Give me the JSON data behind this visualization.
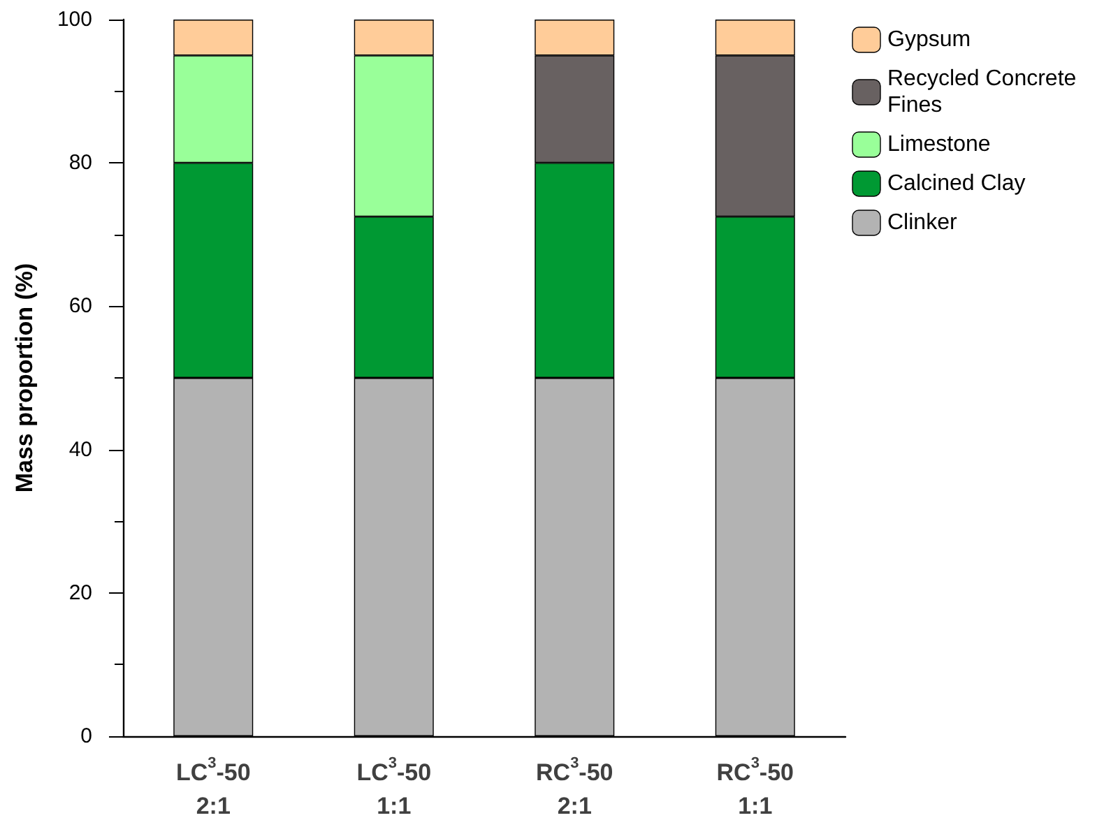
{
  "chart_data": {
    "type": "bar",
    "stacked": true,
    "ylabel": "Mass proportion (%)",
    "categories": [
      "LC$^{3}$-50\n2:1",
      "LC$^{3}$-50\n1:1",
      "RC$^{3}$-50\n2:1",
      "RC$^{3}$-50\n1:1"
    ],
    "series": [
      {
        "name": "Clinker",
        "color": "#b3b3b3",
        "values": [
          50,
          50,
          50,
          50
        ]
      },
      {
        "name": "Calcined Clay",
        "color": "#009933",
        "values": [
          30,
          22.5,
          30,
          22.5
        ]
      },
      {
        "name": "Limestone",
        "color": "#99ff99",
        "values": [
          15,
          22.5,
          null,
          null
        ]
      },
      {
        "name": "Recycled Concrete Fines",
        "color": "#686161",
        "values": [
          null,
          null,
          15,
          22.5
        ]
      },
      {
        "name": "Gypsum",
        "color": "#ffcc99",
        "values": [
          5,
          5,
          5,
          5
        ]
      }
    ],
    "ylim": [
      0,
      100
    ],
    "yticks": [
      0,
      20,
      40,
      60,
      80,
      100
    ],
    "grid": false,
    "legend": "top right"
  }
}
